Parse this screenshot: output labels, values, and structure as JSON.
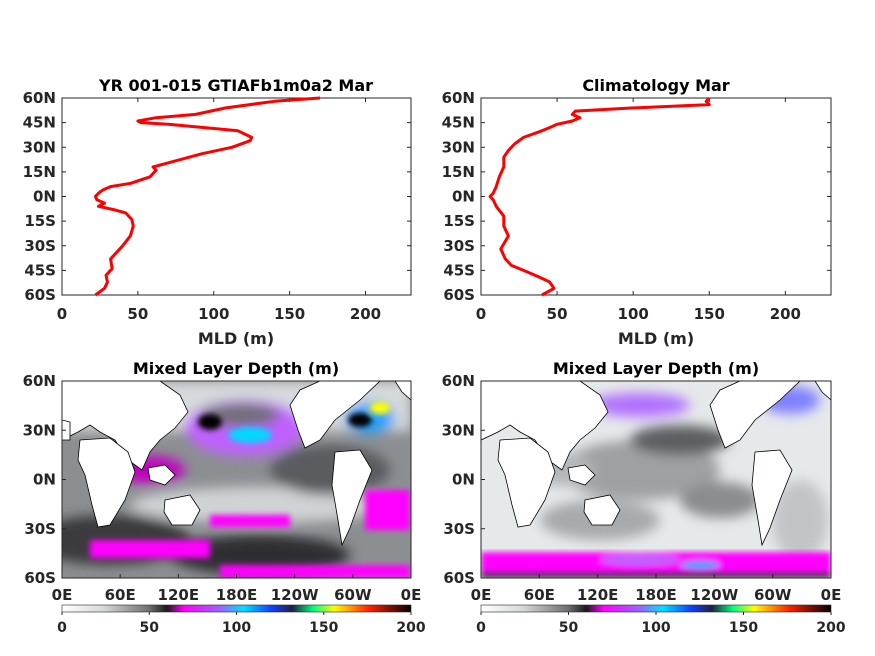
{
  "colors": {
    "profile_line": "#ff0000",
    "land": "#ffffff",
    "axis": "#262626"
  },
  "chart_data": [
    {
      "type": "line",
      "title": "YR 001-015 GTIAFb1m0a2 Mar",
      "xlabel": "MLD (m)",
      "ylabel": "",
      "xlim": [
        0,
        230
      ],
      "ylim": [
        -60,
        60
      ],
      "xticks": [
        "0",
        "50",
        "100",
        "150",
        "200"
      ],
      "yticks": [
        "60S",
        "45S",
        "30S",
        "15S",
        "0N",
        "15N",
        "30N",
        "45N",
        "60N"
      ],
      "series": [
        {
          "x": [
            22,
            28,
            30,
            29,
            33,
            32,
            40,
            45,
            47,
            46,
            42,
            34,
            24,
            28,
            23,
            22,
            24,
            27,
            32,
            45,
            58,
            62,
            60,
            68,
            92,
            112,
            124,
            125,
            116,
            94,
            70,
            52,
            50,
            62,
            88,
            108,
            140,
            170
          ],
          "y": [
            -60,
            -56,
            -52,
            -48,
            -44,
            -38,
            -30,
            -24,
            -18,
            -14,
            -10,
            -8,
            -6,
            -4,
            -2,
            0,
            2,
            4,
            6,
            8,
            12,
            16,
            18,
            20,
            26,
            30,
            34,
            36,
            40,
            42,
            44,
            45,
            46,
            48,
            50,
            54,
            58,
            60
          ]
        }
      ]
    },
    {
      "type": "line",
      "title": "Climatology Mar",
      "xlabel": "MLD (m)",
      "ylabel": "",
      "xlim": [
        0,
        230
      ],
      "ylim": [
        -60,
        60
      ],
      "xticks": [
        "0",
        "50",
        "100",
        "150",
        "200"
      ],
      "yticks": [
        "60S",
        "45S",
        "30S",
        "15S",
        "0N",
        "15N",
        "30N",
        "45N",
        "60N"
      ],
      "series": [
        {
          "x": [
            40,
            48,
            45,
            38,
            28,
            20,
            16,
            13,
            18,
            15,
            15,
            10,
            8,
            6,
            8,
            10,
            12,
            15,
            15,
            18,
            22,
            28,
            40,
            45,
            50,
            60,
            65,
            60,
            62,
            100,
            150,
            148,
            150
          ],
          "y": [
            -60,
            -56,
            -52,
            -49,
            -45,
            -42,
            -38,
            -32,
            -24,
            -18,
            -12,
            -6,
            -2,
            0,
            2,
            6,
            12,
            18,
            24,
            28,
            32,
            36,
            40,
            42,
            44,
            46,
            48,
            50,
            52,
            54,
            56,
            58,
            60
          ]
        }
      ]
    },
    {
      "type": "heatmap",
      "title": "Mixed Layer Depth (m)",
      "xticks": [
        "0E",
        "60E",
        "120E",
        "180E",
        "120W",
        "60W",
        "0E"
      ],
      "yticks": [
        "60N",
        "30N",
        "0N",
        "30S",
        "60S"
      ],
      "colorbar": {
        "range": [
          0,
          200
        ],
        "ticks": [
          "0",
          "50",
          "100",
          "150",
          "200"
        ]
      }
    },
    {
      "type": "heatmap",
      "title": "Mixed Layer Depth (m)",
      "xticks": [
        "0E",
        "60E",
        "120E",
        "180E",
        "120W",
        "60W",
        "0E"
      ],
      "yticks": [
        "60N",
        "30N",
        "0N",
        "30S",
        "60S"
      ],
      "colorbar": {
        "range": [
          0,
          200
        ],
        "ticks": [
          "0",
          "50",
          "100",
          "150",
          "200"
        ]
      }
    }
  ]
}
